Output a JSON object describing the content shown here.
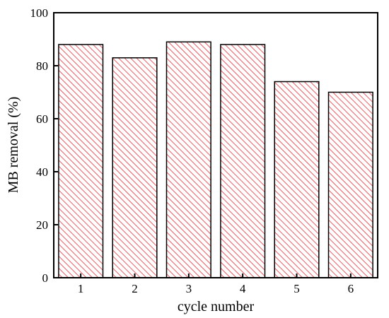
{
  "chart_data": {
    "type": "bar",
    "categories": [
      "1",
      "2",
      "3",
      "4",
      "5",
      "6"
    ],
    "values": [
      88,
      83,
      89,
      88,
      74,
      70
    ],
    "xlabel": "cycle number",
    "ylabel": "MB removal (%)",
    "ylim": [
      0,
      100
    ],
    "yticks": [
      "0",
      "20",
      "40",
      "60",
      "80",
      "100"
    ],
    "grid": false,
    "legend": "none",
    "bar_fill": "hatched",
    "colors": {
      "hatch": "#e8323c",
      "bar_edge": "#000000",
      "axis": "#000000"
    }
  }
}
